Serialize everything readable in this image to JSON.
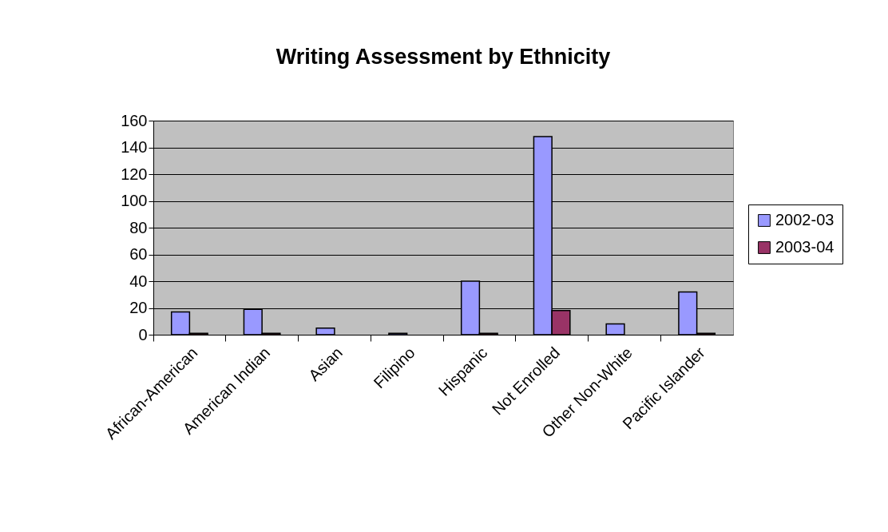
{
  "chart_data": {
    "type": "bar",
    "title": "Writing Assessment by Ethnicity",
    "categories": [
      "African-American",
      "American Indian",
      "Asian",
      "Filipino",
      "Hispanic",
      "Not Enrolled",
      "Other Non-White",
      "Pacific Islander"
    ],
    "series": [
      {
        "name": "2002-03",
        "color": "#9999ff",
        "values": [
          17,
          19,
          5,
          1,
          40,
          148,
          8,
          32
        ]
      },
      {
        "name": "2003-04",
        "color": "#993366",
        "values": [
          1,
          1,
          0,
          0,
          1,
          18,
          0,
          1
        ]
      }
    ],
    "ylim": [
      0,
      160
    ],
    "yticks": [
      0,
      20,
      40,
      60,
      80,
      100,
      120,
      140,
      160
    ],
    "grid": "y",
    "legend": "right"
  }
}
